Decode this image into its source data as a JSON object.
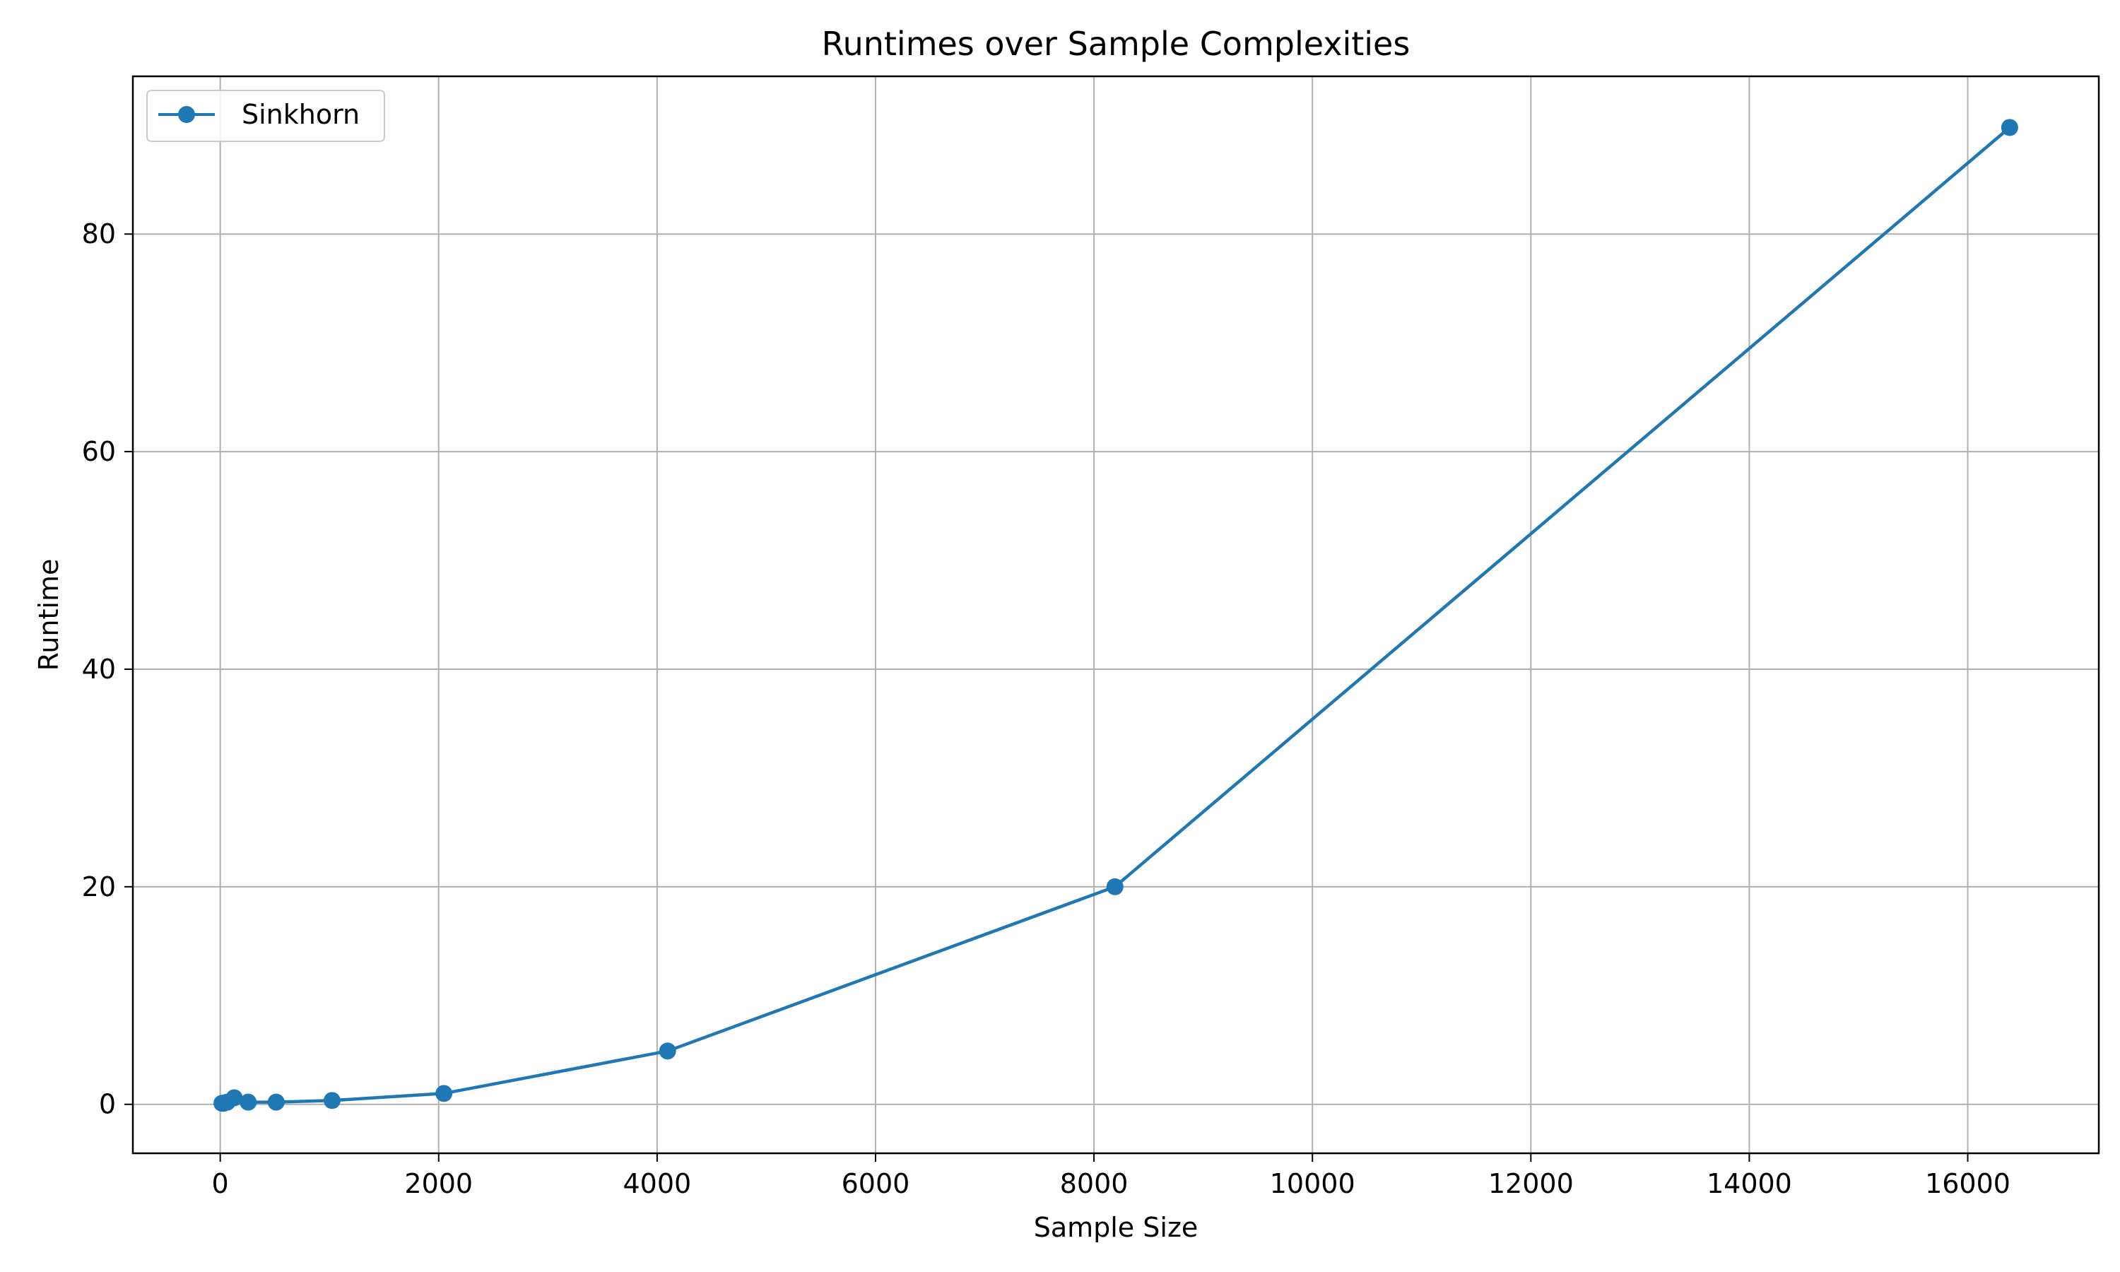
{
  "chart_data": {
    "type": "line",
    "title": "Runtimes over Sample Complexities",
    "xlabel": "Sample Size",
    "ylabel": "Runtime",
    "xlim": [
      -800,
      17200
    ],
    "ylim": [
      -4.5,
      94.5
    ],
    "xticks": [
      0,
      2000,
      4000,
      6000,
      8000,
      10000,
      12000,
      14000,
      16000
    ],
    "yticks": [
      0,
      20,
      40,
      60,
      80
    ],
    "grid": true,
    "legend_position": "top-left",
    "series": [
      {
        "name": "Sinkhorn",
        "color": "#1f77b4",
        "marker": "circle",
        "x": [
          16,
          32,
          64,
          128,
          256,
          512,
          1024,
          2048,
          4096,
          8192,
          16384
        ],
        "y": [
          0.1,
          0.1,
          0.2,
          0.6,
          0.2,
          0.2,
          0.35,
          1.0,
          4.9,
          20.0,
          89.8
        ]
      }
    ]
  }
}
